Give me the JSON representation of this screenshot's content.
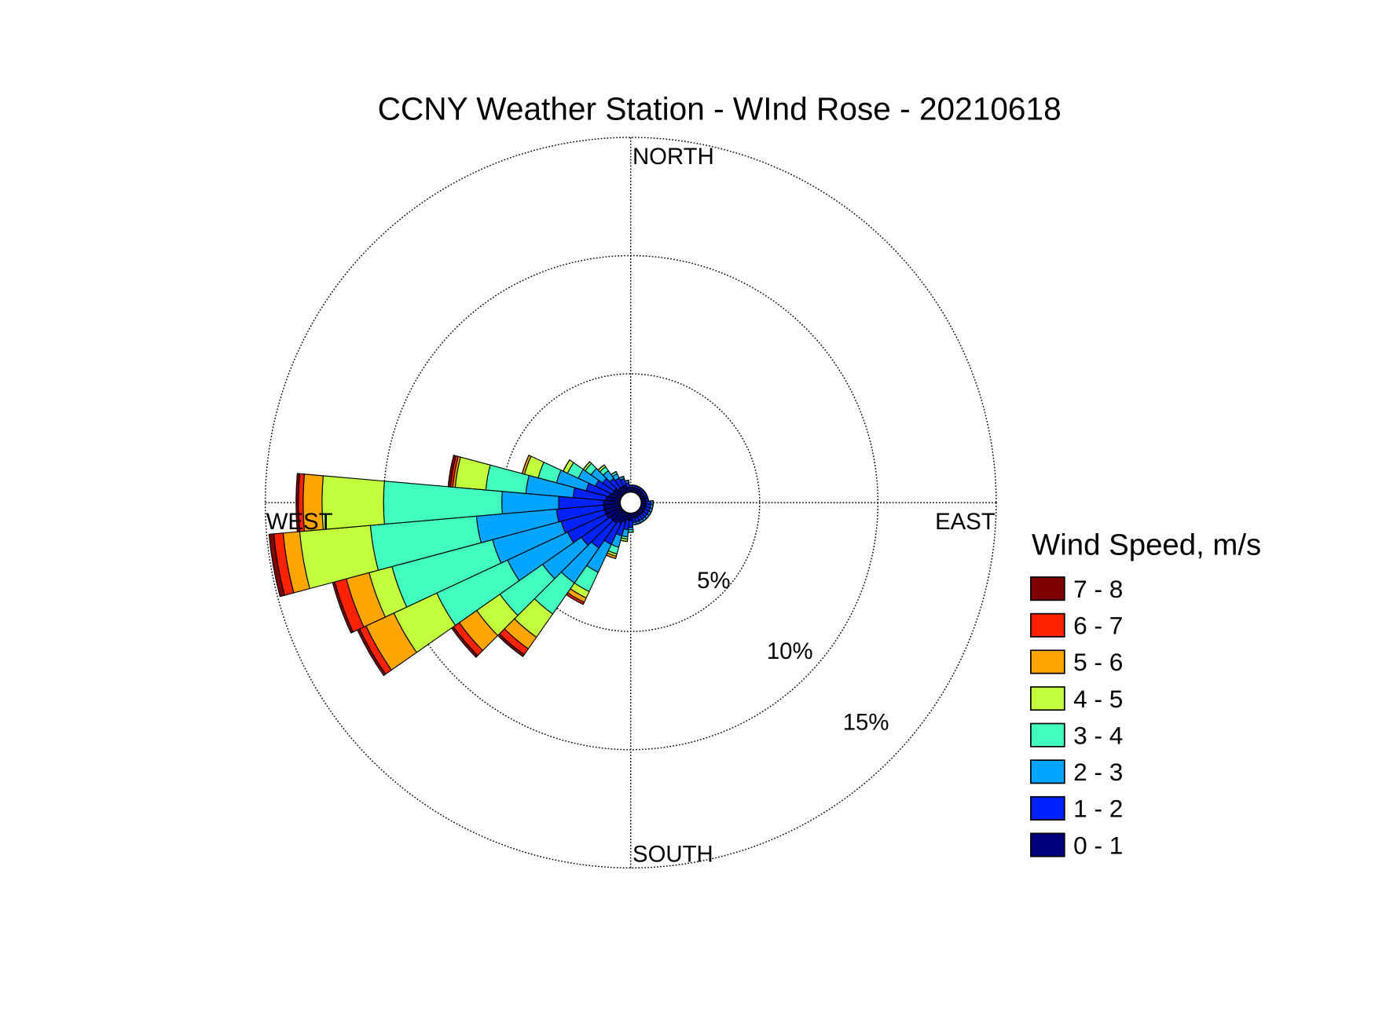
{
  "chart_data": {
    "type": "windrose",
    "title": "CCNY Weather Station - WInd Rose - 20210618",
    "direction_labels": [
      "NORTH",
      "EAST",
      "SOUTH",
      "WEST"
    ],
    "legend_title": "Wind Speed, m/s",
    "directions": [
      0,
      10,
      20,
      30,
      40,
      50,
      60,
      70,
      80,
      90,
      100,
      110,
      120,
      130,
      140,
      150,
      160,
      170,
      180,
      190,
      200,
      210,
      220,
      230,
      240,
      250,
      260,
      270,
      280,
      290,
      300,
      310,
      320,
      330,
      340,
      350
    ],
    "rlim": [
      0,
      15
    ],
    "rticks": [
      {
        "value": 5,
        "label": "5%"
      },
      {
        "value": 10,
        "label": "10%"
      },
      {
        "value": 15,
        "label": "15%"
      }
    ],
    "series": [
      {
        "name": "0 - 1",
        "color": "#00007f",
        "values": [
          0.2,
          0.2,
          0.2,
          0.2,
          0.2,
          0.2,
          0.2,
          0.2,
          0.2,
          0.2,
          0.2,
          0.2,
          0.2,
          0.2,
          0.2,
          0.2,
          0.2,
          0.2,
          0.3,
          0.3,
          0.4,
          0.5,
          0.6,
          0.6,
          0.7,
          0.7,
          0.7,
          0.7,
          0.6,
          0.5,
          0.4,
          0.4,
          0.3,
          0.3,
          0.3,
          0.2
        ]
      },
      {
        "name": "1 - 2",
        "color": "#0022ff",
        "values": [
          0.1,
          0.1,
          0.1,
          0.1,
          0.1,
          0.1,
          0.1,
          0.1,
          0.1,
          0.2,
          0.2,
          0.2,
          0.2,
          0.2,
          0.2,
          0.2,
          0.2,
          0.2,
          0.3,
          0.4,
          0.6,
          1.0,
          1.3,
          1.5,
          1.8,
          1.9,
          2.0,
          1.9,
          1.4,
          1.0,
          0.8,
          0.6,
          0.5,
          0.4,
          0.3,
          0.2
        ]
      },
      {
        "name": "2 - 3",
        "color": "#00a5ff",
        "values": [
          0,
          0,
          0,
          0,
          0,
          0,
          0,
          0,
          0,
          0.1,
          0.1,
          0.1,
          0.1,
          0.1,
          0.1,
          0.1,
          0.1,
          0.1,
          0.1,
          0.3,
          0.5,
          1.3,
          1.8,
          2.0,
          2.8,
          3.0,
          3.4,
          2.4,
          2.0,
          1.3,
          0.8,
          0.6,
          0.4,
          0.2,
          0.1,
          0.1
        ]
      },
      {
        "name": "3 - 4",
        "color": "#40ffbf",
        "values": [
          0,
          0,
          0,
          0,
          0,
          0,
          0,
          0,
          0,
          0,
          0,
          0,
          0,
          0,
          0,
          0,
          0,
          0,
          0.1,
          0.1,
          0.3,
          0.9,
          1.6,
          2.2,
          3.3,
          4.4,
          4.5,
          5.0,
          1.7,
          0.8,
          0.5,
          0.3,
          0.2,
          0.1,
          0,
          0
        ]
      },
      {
        "name": "4 - 5",
        "color": "#c2ff3d",
        "values": [
          0,
          0,
          0,
          0,
          0,
          0,
          0,
          0,
          0,
          0,
          0,
          0,
          0,
          0,
          0,
          0,
          0,
          0,
          0,
          0.1,
          0.1,
          0.3,
          1.2,
          1.2,
          2.0,
          1.0,
          3.0,
          2.6,
          1.3,
          0.6,
          0.2,
          0.1,
          0.1,
          0,
          0,
          0
        ]
      },
      {
        "name": "5 - 6",
        "color": "#ffa500",
        "values": [
          0,
          0,
          0,
          0,
          0,
          0,
          0,
          0,
          0,
          0,
          0,
          0,
          0,
          0,
          0,
          0,
          0,
          0,
          0,
          0,
          0.1,
          0.2,
          0.6,
          0.9,
          1.3,
          1.0,
          0.7,
          0.8,
          0.1,
          0.1,
          0,
          0,
          0,
          0,
          0,
          0
        ]
      },
      {
        "name": "6 - 7",
        "color": "#ff2200",
        "values": [
          0,
          0,
          0,
          0,
          0,
          0,
          0,
          0,
          0,
          0,
          0,
          0,
          0,
          0,
          0,
          0,
          0,
          0,
          0,
          0,
          0,
          0.1,
          0.3,
          0.3,
          0.3,
          0.5,
          0.4,
          0.2,
          0.1,
          0,
          0,
          0,
          0,
          0,
          0,
          0
        ]
      },
      {
        "name": "7 - 8",
        "color": "#7f0000",
        "values": [
          0,
          0,
          0,
          0,
          0,
          0,
          0,
          0,
          0,
          0,
          0,
          0,
          0,
          0,
          0,
          0,
          0,
          0,
          0,
          0,
          0,
          0,
          0.1,
          0.1,
          0.1,
          0.1,
          0.2,
          0.1,
          0.1,
          0,
          0,
          0,
          0,
          0,
          0,
          0
        ]
      }
    ]
  }
}
